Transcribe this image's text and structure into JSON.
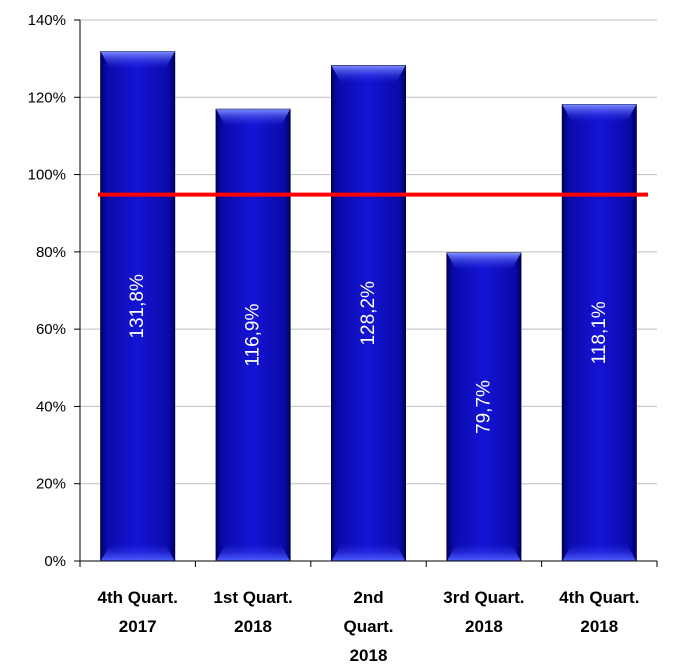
{
  "chart_data": {
    "type": "bar",
    "title": "",
    "xlabel": "",
    "ylabel": "",
    "categories": [
      [
        "4th Quart.",
        "2017"
      ],
      [
        "1st Quart.",
        "2018"
      ],
      [
        "2nd",
        "Quart.",
        "2018"
      ],
      [
        "3rd Quart.",
        "2018"
      ],
      [
        "4th Quart.",
        "2018"
      ]
    ],
    "values": [
      131.8,
      116.9,
      128.2,
      79.7,
      118.1
    ],
    "data_labels": [
      "131,8%",
      "116,9%",
      "128,2%",
      "79,7%",
      "118,1%"
    ],
    "ylim": [
      0,
      140
    ],
    "yticks": [
      0,
      20,
      40,
      60,
      80,
      100,
      120,
      140
    ],
    "ytick_labels": [
      "0%",
      "20%",
      "40%",
      "60%",
      "80%",
      "100%",
      "120%",
      "140%"
    ],
    "reference_line": 94.8,
    "grid": true,
    "legend": "none",
    "colors": {
      "bar": "#1010c8",
      "bar_dark": "#00006a",
      "bar_light": "#5a6cff",
      "reference_line": "#ff0000",
      "grid": "#bfbfbf",
      "axis": "#000000"
    }
  }
}
